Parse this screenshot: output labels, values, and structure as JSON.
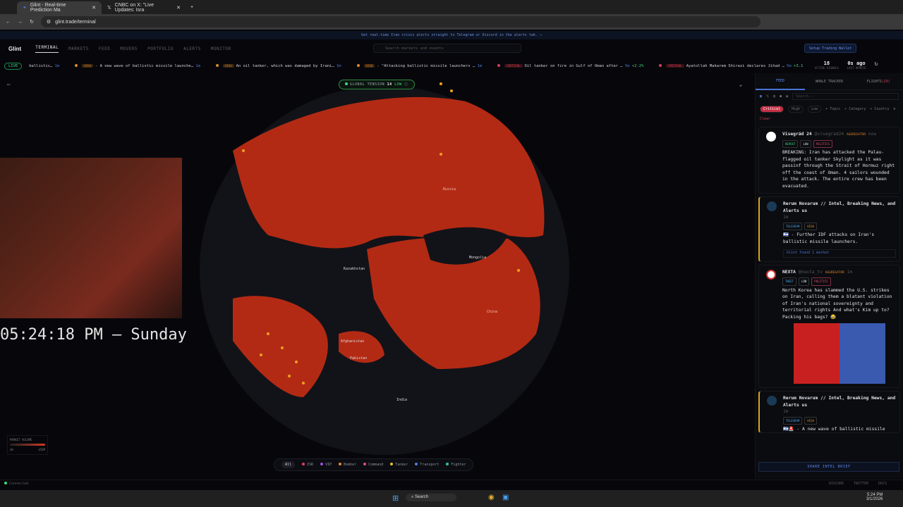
{
  "browser": {
    "tabs": [
      {
        "title": "Glint - Real-time Prediction Ma"
      },
      {
        "title": "CNBC on X: \"Live Updates: Isra"
      }
    ],
    "url": "glint.trade/terminal"
  },
  "banner": "Get real-time Iran crisis alerts straight to Telegram or Discord in the alerts tab. →",
  "nav": {
    "logo": "Glint",
    "items": [
      "TERMINAL",
      "MARKETS",
      "FEED",
      "MOVERS",
      "PORTFOLIO",
      "ALERTS",
      "MONITOR"
    ],
    "search_placeholder": "Search markets and events",
    "wallet_button": "Setup Trading Wallet"
  },
  "ticker": {
    "live": "LIVE",
    "items": [
      {
        "badge": "",
        "text": "ballistic…",
        "time": "1m"
      },
      {
        "badge": "HIGH",
        "text": "- A new wave of ballistic missile launche…",
        "time": "1m"
      },
      {
        "badge": "HIGH",
        "text": "An oil tanker, which was damaged by Irani…",
        "time": "1m"
      },
      {
        "badge": "HIGH",
        "text": "- \"Attacking ballistic missile launchers …",
        "time": "1m"
      },
      {
        "badge": "CRITICAL",
        "text": "Oil tanker on fire in Gulf of Oman after …",
        "time": "5m",
        "change": "+2.2%"
      },
      {
        "badge": "CRITICAL",
        "text": "Ayatollah Makarem Shirazi declares Jihad …",
        "time": "5m",
        "change": "+3.1"
      }
    ]
  },
  "stats": {
    "active_signals": "18",
    "active_signals_label": "ACTIVE SIGNALS",
    "last_update": "0s ago",
    "last_update_label": "LAST UPDATE"
  },
  "map": {
    "tension_label": "GLOBAL TENSION",
    "tension_value": "14",
    "tension_level": "LOW",
    "labels": [
      "Russia",
      "Kazakhstan",
      "Mongolia",
      "China",
      "Afghanistan",
      "Pakistan",
      "India"
    ],
    "legend": [
      {
        "label": "All"
      },
      {
        "label": "ISR",
        "color": "#e0405a"
      },
      {
        "label": "VIP",
        "color": "#a050e0"
      },
      {
        "label": "Bomber",
        "color": "#e08a30"
      },
      {
        "label": "Command",
        "color": "#e04a90"
      },
      {
        "label": "Tanker",
        "color": "#e0c030"
      },
      {
        "label": "Transport",
        "color": "#4a80e0"
      },
      {
        "label": "Fighter",
        "color": "#30c0b0"
      }
    ],
    "volume_title": "MARKET VOLUME",
    "volume_min": "$0",
    "volume_max": "$50M"
  },
  "overlay": {
    "clock": "05:24:18 PM – Sunday"
  },
  "panel": {
    "tabs": [
      "FEED",
      "WHALE TRACKER",
      "FLIGHTS"
    ],
    "flights_count": "(29)",
    "search_placeholder": "Search...",
    "filters": [
      "Critical",
      "High",
      "Low",
      "+ Topic",
      "+ Category",
      "+ Country",
      "Clear"
    ],
    "posts": [
      {
        "name": "Visegrád 24",
        "handle": "@visegrad24",
        "role": "AGGREGATOR",
        "time": "now",
        "tags": [
          "REPOST",
          "LOW",
          "POLITICS"
        ],
        "text": "BREAKING: Iran has attacked the Palau-flagged oil tanker Skylight as it was passinf through the Strait of Hormuz right off the coast of Oman. 4 sailors wounded in the attack. The entire crew has been evacuated."
      },
      {
        "name": "Rerum Novarum // Intel, Breaking News, and Alerts us",
        "time": "1m",
        "tags": [
          "TELEGRAM",
          "HIGH"
        ],
        "text": "🇮🇱 - Further IDF attacks on Iran's ballistic missile launchers.",
        "market": "Glint found 1 market"
      },
      {
        "name": "NEXTA",
        "handle": "@nexta_tv",
        "role": "AGGREGATOR",
        "time": "1m",
        "tags": [
          "TWEET",
          "LOW",
          "POLITICS"
        ],
        "text": "North Korea has slammed the U.S. strikes on Iran, calling them a blatant violation of Iran's national sovereignty and territorial rights And what's Kim up to? Packing his bags? 😂"
      },
      {
        "name": "Rerum Novarum // Intel, Breaking News, and Alerts us",
        "time": "1m",
        "tags": [
          "TELEGRAM",
          "HIGH"
        ],
        "text": "🇮🇱🚨 - A new wave of ballistic missile launches have been detected from Iran"
      }
    ],
    "share": "SHARE INTEL BRIEF"
  },
  "status": {
    "connected": "Connected",
    "links": [
      "DISCORD",
      "TWITTER",
      "DOCS"
    ]
  },
  "taskbar": {
    "search": "Search",
    "time": "5:24 PM",
    "date": "3/1/2026"
  }
}
